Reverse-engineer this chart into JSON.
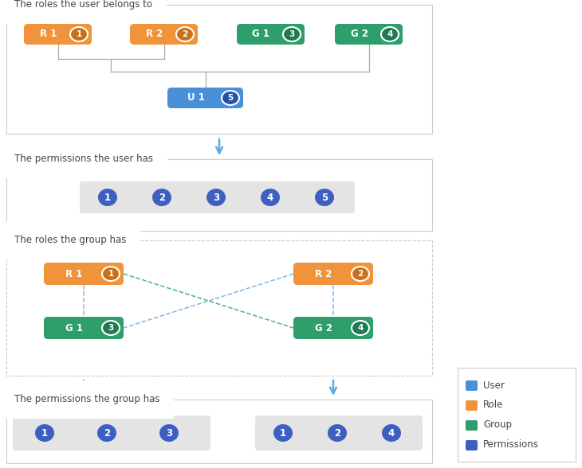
{
  "bg_color": "#ffffff",
  "orange_color": "#F0933A",
  "green_color": "#2E9E6B",
  "blue_user_color": "#4A90D9",
  "blue_perm_color": "#3D5FC0",
  "gray_bg": "#E4E4E4",
  "border_color": "#CCCCCC",
  "arrow_color": "#5AABDF",
  "title_color": "#444444",
  "section3_border": "#BBBBBB",
  "dash_blue": "#7AB8EE",
  "dash_green": "#4AB87A",
  "section1_title": "The roles the user belongs to",
  "section2_title": "The permissions the user has",
  "section3_title": "The roles the group has",
  "section4_title": "The permissions the group has",
  "legend_items": [
    {
      "label": "User",
      "color": "#4A90D9"
    },
    {
      "label": "Role",
      "color": "#F0933A"
    },
    {
      "label": "Group",
      "color": "#2E9E6B"
    },
    {
      "label": "Permissions",
      "color": "#3D5FC0"
    }
  ]
}
